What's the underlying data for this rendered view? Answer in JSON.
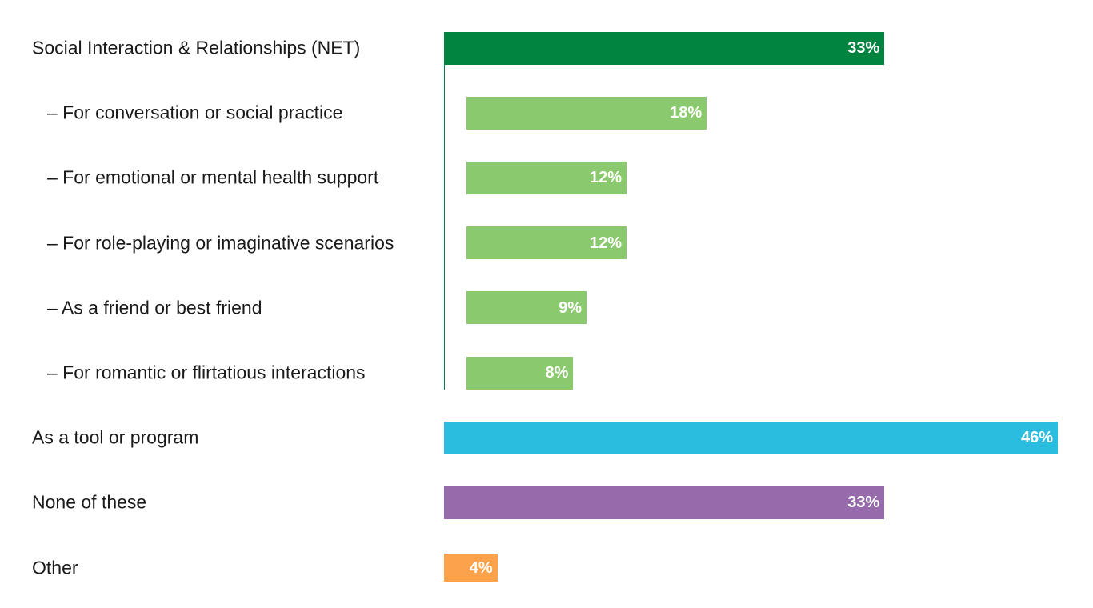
{
  "chart_data": {
    "type": "bar",
    "orientation": "horizontal",
    "title": "",
    "xlabel": "",
    "ylabel": "",
    "xlim": [
      0,
      46
    ],
    "grid": false,
    "legend": "none",
    "categories": [
      "Social Interaction & Relationships (NET)",
      "– For conversation or social practice",
      "– For emotional or mental health support",
      "– For role-playing or imaginative scenarios",
      "– As a friend or best friend",
      "– For romantic or flirtatious interactions",
      "As a tool or program",
      "None of these",
      "Other"
    ],
    "values": [
      33,
      18,
      12,
      12,
      9,
      8,
      46,
      33,
      4
    ],
    "value_labels": [
      "33%",
      "18%",
      "12%",
      "12%",
      "9%",
      "8%",
      "46%",
      "33%",
      "4%"
    ],
    "subcategory": [
      false,
      true,
      true,
      true,
      true,
      true,
      false,
      false,
      false
    ],
    "colors": [
      "#00843f",
      "#8bc96e",
      "#8bc96e",
      "#8bc96e",
      "#8bc96e",
      "#8bc96e",
      "#2bbde0",
      "#976bab",
      "#fba24b"
    ],
    "bracket_color": "#00843f"
  }
}
